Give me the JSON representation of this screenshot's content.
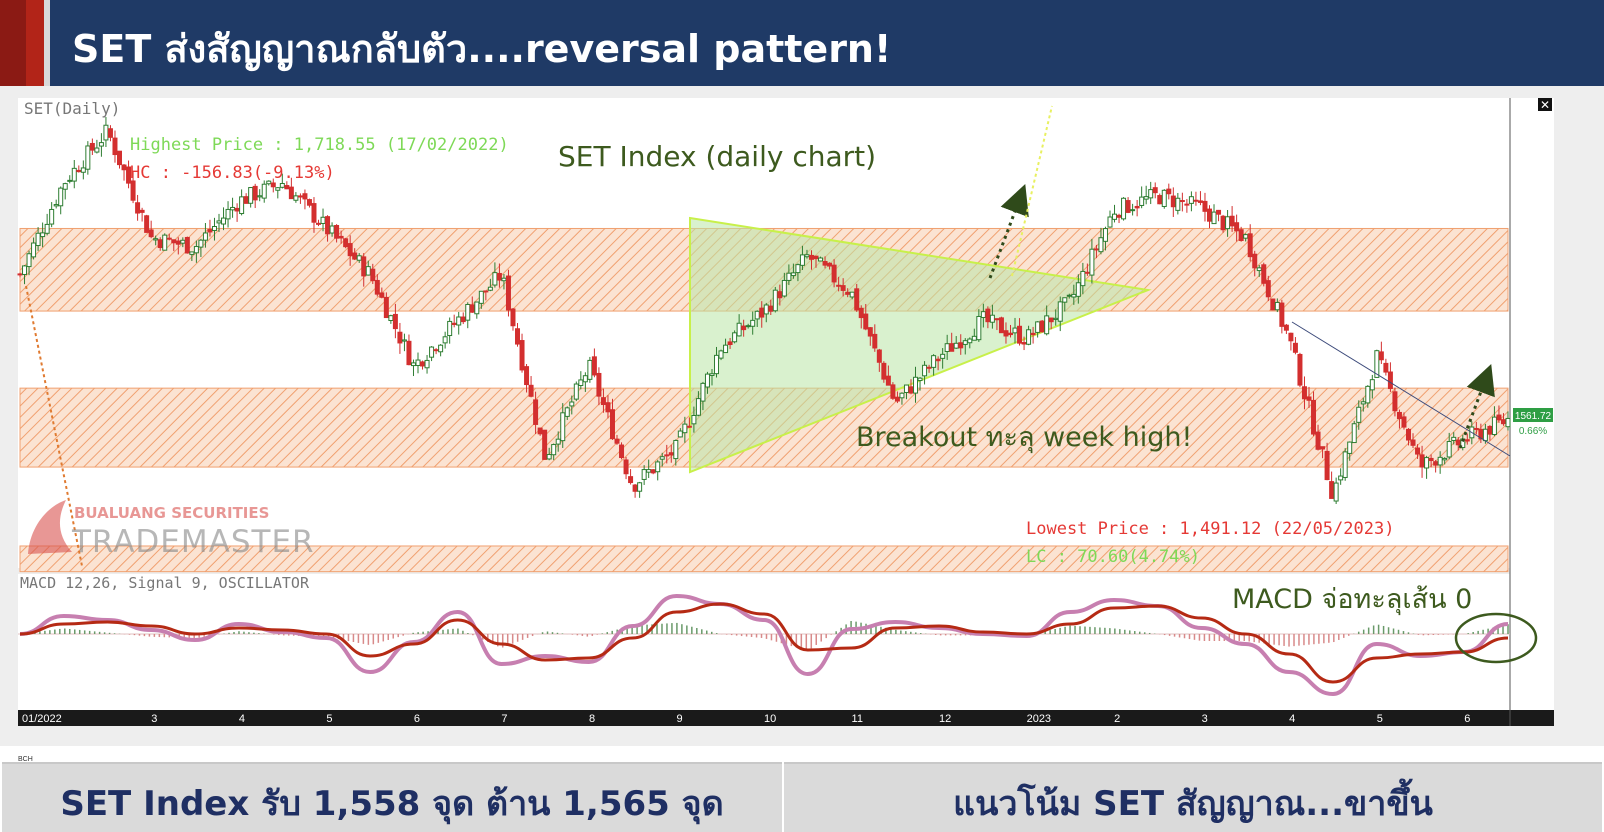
{
  "header": {
    "title": "SET ส่งสัญญาณกลับตัว....reversal pattern!"
  },
  "footer": {
    "left_text": "SET Index รับ 1,558 จุด ต้าน 1,565 จุด",
    "right_text": "แนวโน้ม SET สัญญาณ...ขาขึ้น",
    "small_label": "BCH"
  },
  "colors": {
    "header_bg": "#1f3a66",
    "header_accent": "#b22418",
    "up_candle": "#2e7d32",
    "down_candle": "#d32f2f",
    "zone_fill": "#f4a47a",
    "triangle_fill": "#b9e6a6",
    "macd_line": "#c77fb0",
    "signal_line": "#b52a14",
    "annotation_green": "#3d5a1e"
  },
  "chart_data": [
    {
      "type": "candlestick",
      "title": "SET(Daily)",
      "annotation_title": "SET Index (daily chart)",
      "highest_price_label": "Highest Price : 1,718.55 (17/02/2022)",
      "hc_label": "HC : -156.83(-9.13%)",
      "lowest_price_label": "Lowest Price : 1,491.12 (22/05/2023)",
      "lc_label": "LC : 70.60(4.74%)",
      "breakout_note": "Breakout ทะลุ week high!",
      "last_price": "1561.72",
      "last_change": "0.66%",
      "ylim": [
        1480,
        1735
      ],
      "x_ticks": [
        "01/2022",
        "3",
        "4",
        "5",
        "6",
        "7",
        "8",
        "9",
        "10",
        "11",
        "12",
        "2023",
        "2",
        "3",
        "4",
        "5",
        "6"
      ],
      "resistance_zones": [
        [
          1620,
          1665
        ],
        [
          1535,
          1578
        ],
        [
          1478,
          1492
        ]
      ],
      "key_points": {
        "x_month": [
          0.0,
          0.5,
          1.0,
          1.5,
          2.0,
          2.5,
          3.0,
          3.5,
          4.0,
          4.5,
          5.0,
          5.5,
          6.0,
          6.5,
          7.0,
          7.5,
          8.0,
          8.5,
          9.0,
          9.5,
          10.0,
          10.5,
          11.0,
          11.5,
          12.0,
          12.5,
          13.0,
          13.5,
          14.0,
          14.5,
          15.0,
          15.5,
          16.0,
          16.5,
          17.0
        ],
        "close": [
          1640,
          1690,
          1718,
          1660,
          1655,
          1680,
          1690,
          1665,
          1640,
          1590,
          1615,
          1640,
          1540,
          1590,
          1525,
          1545,
          1600,
          1620,
          1650,
          1630,
          1570,
          1595,
          1615,
          1605,
          1625,
          1675,
          1683,
          1676,
          1660,
          1605,
          1520,
          1595,
          1535,
          1550,
          1561
        ]
      }
    },
    {
      "type": "line",
      "title": "MACD 12,26, Signal 9, OSCILLATOR",
      "annotation": "MACD จ่อทะลุเส้น 0",
      "series": [
        {
          "name": "MACD",
          "values": [
            0,
            18,
            14,
            4,
            -6,
            10,
            2,
            -4,
            -38,
            -8,
            22,
            -30,
            -22,
            -28,
            8,
            38,
            30,
            14,
            -40,
            5,
            12,
            6,
            0,
            -2,
            22,
            34,
            28,
            6,
            -10,
            -38,
            -60,
            -10,
            -22,
            -18,
            10
          ]
        },
        {
          "name": "Signal",
          "values": [
            0,
            10,
            12,
            8,
            0,
            6,
            4,
            0,
            -22,
            -10,
            14,
            -10,
            -26,
            -24,
            -4,
            22,
            30,
            20,
            -16,
            -14,
            6,
            8,
            2,
            0,
            10,
            26,
            28,
            16,
            0,
            -20,
            -48,
            -24,
            -20,
            -18,
            -4
          ]
        }
      ]
    }
  ]
}
